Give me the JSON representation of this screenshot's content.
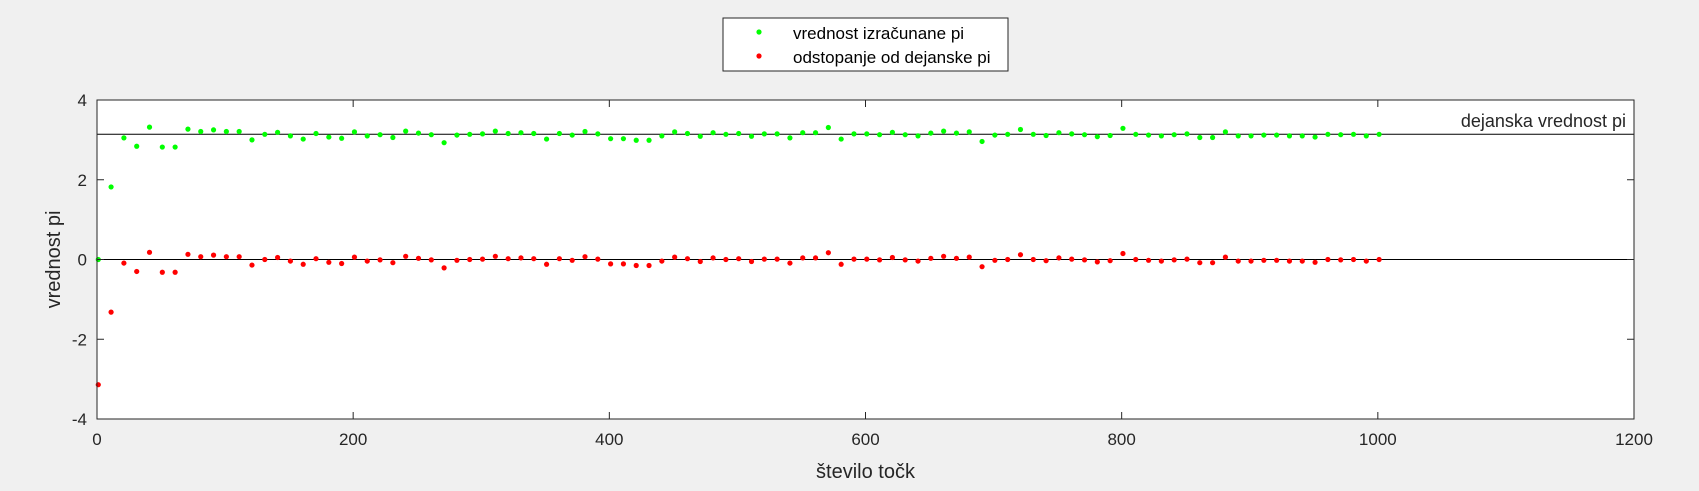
{
  "chart_data": {
    "type": "scatter",
    "xlabel": "število točk",
    "ylabel": "vrednost pi",
    "xlim": [
      0,
      1200
    ],
    "ylim": [
      -4,
      4
    ],
    "xticks": [
      0,
      200,
      400,
      600,
      800,
      1000,
      1200
    ],
    "yticks": [
      -4,
      -2,
      0,
      2,
      4
    ],
    "grid": false,
    "legend_position": "top-center",
    "reference_lines": [
      {
        "y": 3.14159,
        "label": "dejanska vrednost pi",
        "color": "#000000"
      },
      {
        "y": 0,
        "label": "",
        "color": "#000000"
      }
    ],
    "x": [
      1,
      11,
      21,
      31,
      41,
      51,
      61,
      71,
      81,
      91,
      101,
      111,
      121,
      131,
      141,
      151,
      161,
      171,
      181,
      191,
      201,
      211,
      221,
      231,
      241,
      251,
      261,
      271,
      281,
      291,
      301,
      311,
      321,
      331,
      341,
      351,
      361,
      371,
      381,
      391,
      401,
      411,
      421,
      431,
      441,
      451,
      461,
      471,
      481,
      491,
      501,
      511,
      521,
      531,
      541,
      551,
      561,
      571,
      581,
      591,
      601,
      611,
      621,
      631,
      641,
      651,
      661,
      671,
      681,
      691,
      701,
      711,
      721,
      731,
      741,
      751,
      761,
      771,
      781,
      791,
      801,
      811,
      821,
      831,
      841,
      851,
      861,
      871,
      881,
      891,
      901,
      911,
      921,
      931,
      941,
      951,
      961,
      971,
      981,
      991,
      1001
    ],
    "series": [
      {
        "name": "vrednost izračunane pi",
        "color": "#00ff00",
        "values": [
          0,
          1.82,
          3.05,
          2.84,
          3.32,
          2.82,
          2.82,
          3.27,
          3.21,
          3.25,
          3.21,
          3.21,
          3.0,
          3.14,
          3.19,
          3.1,
          3.02,
          3.16,
          3.07,
          3.04,
          3.2,
          3.1,
          3.13,
          3.06,
          3.22,
          3.17,
          3.13,
          2.93,
          3.12,
          3.14,
          3.15,
          3.22,
          3.16,
          3.18,
          3.16,
          3.02,
          3.16,
          3.12,
          3.21,
          3.15,
          3.03,
          3.03,
          2.99,
          2.99,
          3.1,
          3.2,
          3.16,
          3.09,
          3.18,
          3.14,
          3.16,
          3.09,
          3.15,
          3.15,
          3.05,
          3.18,
          3.18,
          3.31,
          3.02,
          3.15,
          3.15,
          3.13,
          3.19,
          3.13,
          3.1,
          3.17,
          3.22,
          3.17,
          3.2,
          2.96,
          3.12,
          3.14,
          3.26,
          3.14,
          3.11,
          3.18,
          3.15,
          3.13,
          3.08,
          3.11,
          3.29,
          3.14,
          3.12,
          3.1,
          3.13,
          3.15,
          3.06,
          3.06,
          3.2,
          3.1,
          3.1,
          3.12,
          3.12,
          3.1,
          3.1,
          3.07,
          3.14,
          3.13,
          3.14,
          3.1,
          3.14
        ]
      },
      {
        "name": "odstopanje od dejanske pi",
        "color": "#ff0000",
        "values": [
          -3.14,
          -1.32,
          -0.09,
          -0.3,
          0.18,
          -0.32,
          -0.32,
          0.13,
          0.07,
          0.11,
          0.07,
          0.07,
          -0.14,
          0.0,
          0.05,
          -0.04,
          -0.12,
          0.02,
          -0.07,
          -0.1,
          0.06,
          -0.04,
          -0.01,
          -0.08,
          0.08,
          0.03,
          -0.01,
          -0.21,
          -0.02,
          0.0,
          0.01,
          0.08,
          0.02,
          0.04,
          0.02,
          -0.12,
          0.02,
          -0.02,
          0.07,
          0.01,
          -0.11,
          -0.11,
          -0.15,
          -0.15,
          -0.04,
          0.06,
          0.02,
          -0.05,
          0.04,
          0.0,
          0.02,
          -0.05,
          0.01,
          0.01,
          -0.09,
          0.04,
          0.04,
          0.17,
          -0.12,
          0.01,
          0.01,
          -0.01,
          0.05,
          -0.01,
          -0.04,
          0.03,
          0.08,
          0.03,
          0.06,
          -0.18,
          -0.02,
          0.0,
          0.12,
          0.0,
          -0.03,
          0.04,
          0.01,
          -0.01,
          -0.06,
          -0.03,
          0.15,
          0.0,
          -0.02,
          -0.04,
          -0.01,
          0.01,
          -0.08,
          -0.08,
          0.06,
          -0.04,
          -0.04,
          -0.02,
          -0.02,
          -0.04,
          -0.04,
          -0.07,
          0.0,
          -0.01,
          0.0,
          -0.04,
          0.0
        ]
      }
    ]
  }
}
